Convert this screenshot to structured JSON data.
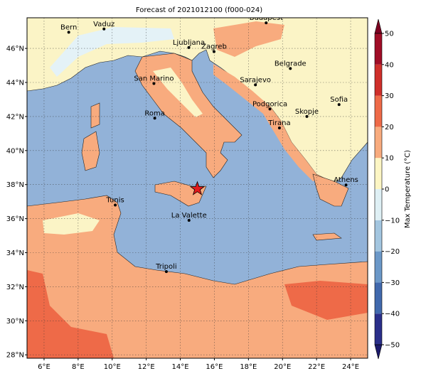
{
  "map": {
    "title": "Forecast of 2021012100 (f000-024)",
    "lonlim": [
      5,
      25
    ],
    "latlim": [
      27.8,
      47.8
    ],
    "lonticks": [
      {
        "value": 6,
        "label": "6°E"
      },
      {
        "value": 8,
        "label": "8°E"
      },
      {
        "value": 10,
        "label": "10°E"
      },
      {
        "value": 12,
        "label": "12°E"
      },
      {
        "value": 14,
        "label": "14°E"
      },
      {
        "value": 16,
        "label": "16°E"
      },
      {
        "value": 18,
        "label": "18°E"
      },
      {
        "value": 20,
        "label": "20°E"
      },
      {
        "value": 22,
        "label": "22°E"
      },
      {
        "value": 24,
        "label": "24°E"
      }
    ],
    "latticks": [
      {
        "value": 28,
        "label": "28°N"
      },
      {
        "value": 30,
        "label": "30°N"
      },
      {
        "value": 32,
        "label": "32°N"
      },
      {
        "value": 34,
        "label": "34°N"
      },
      {
        "value": 36,
        "label": "36°N"
      },
      {
        "value": 38,
        "label": "38°N"
      },
      {
        "value": 40,
        "label": "40°N"
      },
      {
        "value": 42,
        "label": "42°N"
      },
      {
        "value": 44,
        "label": "44°N"
      },
      {
        "value": 46,
        "label": "46°N"
      }
    ],
    "grid": true,
    "cities": [
      {
        "name": "Bern",
        "lon": 7.45,
        "lat": 46.95
      },
      {
        "name": "Vaduz",
        "lon": 9.52,
        "lat": 47.14
      },
      {
        "name": "Budapest",
        "lon": 19.04,
        "lat": 47.5
      },
      {
        "name": "Ljubljana",
        "lon": 14.5,
        "lat": 46.05
      },
      {
        "name": "Zagreb",
        "lon": 15.98,
        "lat": 45.81
      },
      {
        "name": "Belgrade",
        "lon": 20.46,
        "lat": 44.82
      },
      {
        "name": "San Marino",
        "lon": 12.45,
        "lat": 43.94
      },
      {
        "name": "Sarajevo",
        "lon": 18.41,
        "lat": 43.86
      },
      {
        "name": "Sofia",
        "lon": 23.32,
        "lat": 42.7
      },
      {
        "name": "Roma",
        "lon": 12.5,
        "lat": 41.9
      },
      {
        "name": "Podgorica",
        "lon": 19.26,
        "lat": 42.44
      },
      {
        "name": "Skopje",
        "lon": 21.43,
        "lat": 42.0
      },
      {
        "name": "Tirana",
        "lon": 19.82,
        "lat": 41.33
      },
      {
        "name": "Athens",
        "lon": 23.73,
        "lat": 37.98
      },
      {
        "name": "Tunis",
        "lon": 10.18,
        "lat": 36.8
      },
      {
        "name": "La Valette",
        "lon": 14.51,
        "lat": 35.9
      },
      {
        "name": "Tripoli",
        "lon": 13.18,
        "lat": 32.89
      }
    ],
    "marker": {
      "lon": 15.0,
      "lat": 37.75,
      "color": "#e31a1c"
    },
    "colorbar": {
      "label": "Max Temperature (°C)",
      "lim": [
        -50,
        50
      ],
      "ticks": [
        {
          "value": -50,
          "label": "−50"
        },
        {
          "value": -40,
          "label": "−40"
        },
        {
          "value": -30,
          "label": "−30"
        },
        {
          "value": -20,
          "label": "−20"
        },
        {
          "value": -10,
          "label": "−10"
        },
        {
          "value": 0,
          "label": "0"
        },
        {
          "value": 10,
          "label": "10"
        },
        {
          "value": 20,
          "label": "20"
        },
        {
          "value": 30,
          "label": "30"
        },
        {
          "value": 40,
          "label": "40"
        },
        {
          "value": 50,
          "label": "50"
        }
      ],
      "colors": [
        "#2a2f8a",
        "#4169ad",
        "#6b98c8",
        "#a3c6e0",
        "#dff0f5",
        "#fdf6c4",
        "#f8ab7e",
        "#ee6a48",
        "#cf2f2a",
        "#a00d26"
      ],
      "under": "#1c1a6b",
      "over": "#7d0021"
    }
  }
}
